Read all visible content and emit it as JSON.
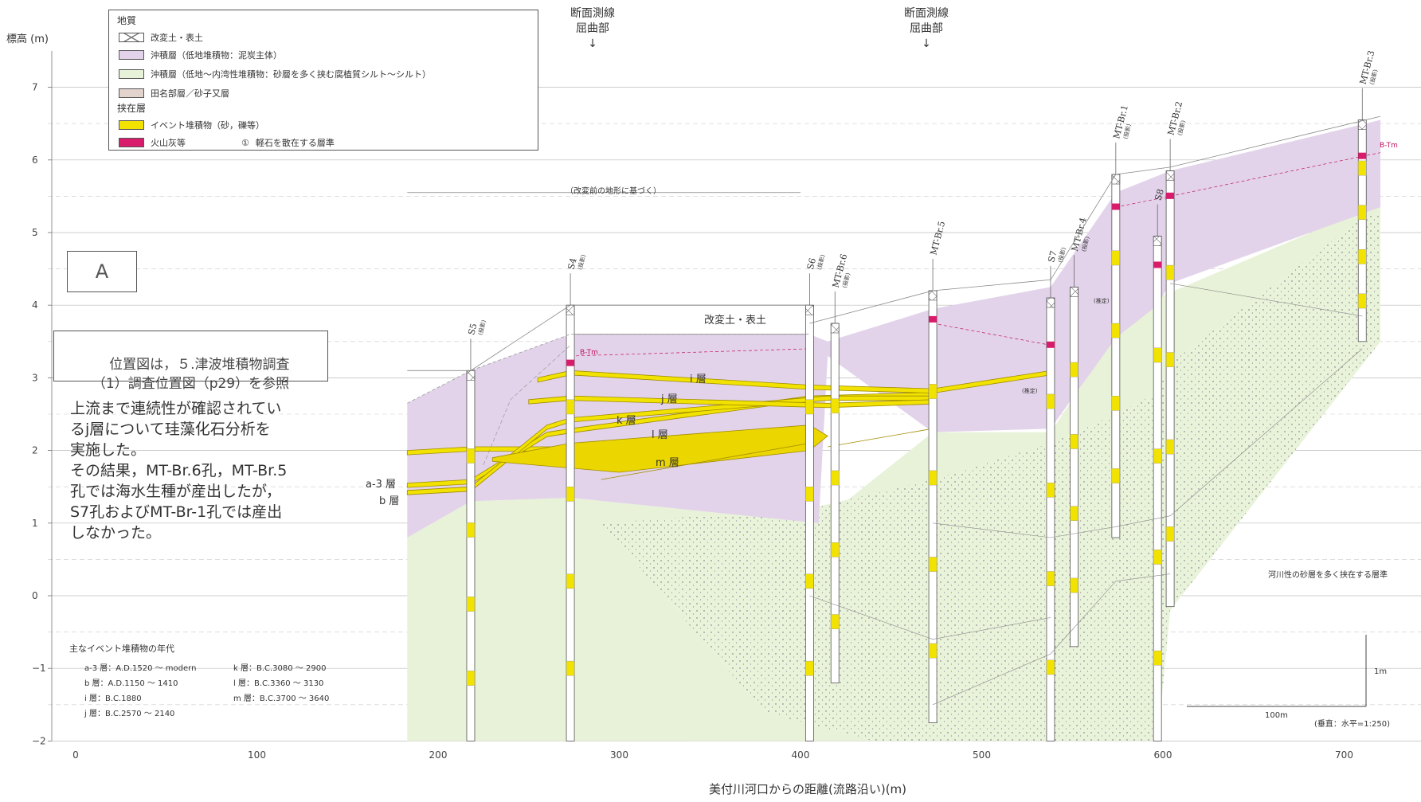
{
  "axes": {
    "ylabel": "標高 (m)",
    "xlabel": "美付川河口からの距離(流路沿い)(m)",
    "y_ticks": [
      "7",
      "6",
      "5",
      "4",
      "3",
      "2",
      "1",
      "0",
      "−1",
      "−2"
    ],
    "x_ticks": [
      "0",
      "100",
      "200",
      "300",
      "400",
      "500",
      "600",
      "700"
    ],
    "xlim": [
      -40,
      730
    ],
    "ylim": [
      -2,
      7.5
    ]
  },
  "legend": {
    "title_geology": "地質",
    "items_geology": [
      {
        "label": "改変土・表土",
        "color": "#ffffff",
        "pattern": "cross"
      },
      {
        "label": "沖積層（低地堆積物：泥炭主体）",
        "color": "#e2d3ea"
      },
      {
        "label": "沖積層（低地〜内湾性堆積物：砂層を多く挟む腐植質シルト〜シルト）",
        "color": "#e8f2d8"
      },
      {
        "label": "田名部層／砂子又層",
        "color": "#e2d4cc"
      }
    ],
    "title_intercalated": "挟在層",
    "items_intercalated": [
      {
        "label": "イベント堆積物（砂，礫等）",
        "color": "#f2e200"
      },
      {
        "label": "火山灰等",
        "color": "#d81b6a"
      },
      {
        "label": "軽石を散在する層準",
        "symbol": "①"
      }
    ]
  },
  "annotations": {
    "bend1": "断面測線\n屈曲部\n↓",
    "bend2": "断面測線\n屈曲部\n↓",
    "section_label": "A",
    "location_note": "位置図は，５.津波堆積物調査\n（1）調査位置図（p29）を参照",
    "diatom_note": "上流まで連続性が確認されてい\nるj層について珪藻化石分析を\n実施した。\nその結果，MT-Br.6孔，MT-Br.5\n孔では海水生種が産出したが，\nS7孔およびMT-Br-1孔では産出\nしなかった。",
    "pre_modification": "（改変前の地形に基づく）",
    "fill_soil": "改変土・表土",
    "fluvial_note": "河川性の砂層を多く挟在する層準",
    "scale_vertical": "1m",
    "scale_horizontal": "100m",
    "scale_ratio": "(垂直：水平=1:250)",
    "btm": "B-Tm",
    "tentative": "(推定)"
  },
  "layers": [
    {
      "name": "a-3 層"
    },
    {
      "name": "b 層"
    },
    {
      "name": "i 層"
    },
    {
      "name": "j 層"
    },
    {
      "name": "k 層"
    },
    {
      "name": "l 層"
    },
    {
      "name": "m 層"
    }
  ],
  "ages": {
    "title": "主なイベント堆積物の年代",
    "left": [
      "a-3 層：A.D.1520 〜 modern",
      "b 層：A.D.1150 〜 1410",
      "i 層：B.C.1880",
      "j 層：B.C.2570 〜 2140"
    ],
    "right": [
      "k 層：B.C.3080 〜 2900",
      "l 層：B.C.3360 〜 3130",
      "m 層：B.C.3700 〜 3640"
    ]
  },
  "boreholes": [
    {
      "name": "S5",
      "tag": "(投影)",
      "x": 218,
      "top": 3.1,
      "bottom": -2.0
    },
    {
      "name": "S4",
      "tag": "(投影)",
      "x": 273,
      "top": 4.0,
      "bottom": -2.0
    },
    {
      "name": "S6",
      "tag": "(投影)",
      "x": 405,
      "top": 4.0,
      "bottom": -2.0
    },
    {
      "name": "MT-Br.6",
      "tag": "(投影)",
      "x": 419,
      "top": 3.75,
      "bottom": -1.2
    },
    {
      "name": "MT-Br.5",
      "tag": "",
      "x": 473,
      "top": 4.2,
      "bottom": -1.75
    },
    {
      "name": "S7",
      "tag": "(投影)",
      "x": 538,
      "top": 4.1,
      "bottom": -2.0
    },
    {
      "name": "MT-Br.4",
      "tag": "(投影)",
      "x": 551,
      "top": 4.25,
      "bottom": -0.7
    },
    {
      "name": "MT-Br.1",
      "tag": "(投影)",
      "x": 574,
      "top": 5.8,
      "bottom": 0.8
    },
    {
      "name": "S8",
      "tag": "(投影)",
      "x": 597,
      "top": 4.95,
      "bottom": -2.0
    },
    {
      "name": "MT-Br.2",
      "tag": "(投影)",
      "x": 604,
      "top": 5.85,
      "bottom": -0.15
    },
    {
      "name": "MT-Br.3",
      "tag": "(投影)",
      "x": 710,
      "top": 6.55,
      "bottom": 3.5
    }
  ]
}
